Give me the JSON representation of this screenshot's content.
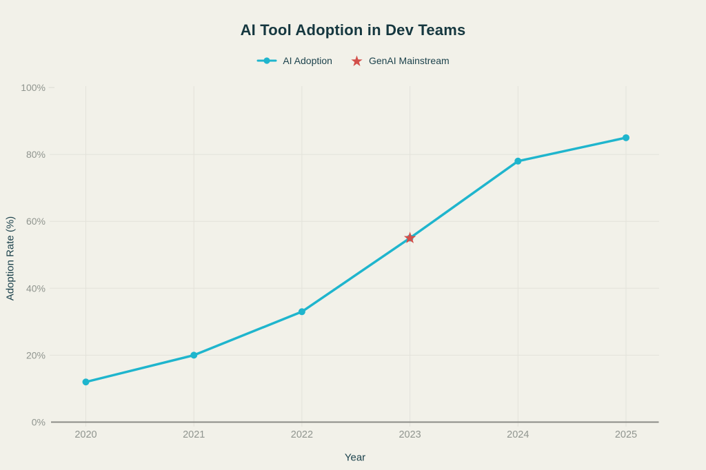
{
  "title": "AI Tool Adoption in Dev Teams",
  "legend": {
    "items": [
      {
        "label": "AI Adoption",
        "marker": "line-dot",
        "color": "#1fb5cd"
      },
      {
        "label": "GenAI Mainstream",
        "marker": "star",
        "color": "#d34f4a"
      }
    ]
  },
  "chart_data": {
    "type": "line",
    "title": "AI Tool Adoption in Dev Teams",
    "x": [
      2020,
      2021,
      2022,
      2023,
      2024,
      2025
    ],
    "series": [
      {
        "name": "AI Adoption",
        "type": "line",
        "marker": "circle",
        "color": "#1fb5cd",
        "values": [
          12,
          20,
          33,
          55,
          78,
          85
        ]
      },
      {
        "name": "GenAI Mainstream",
        "type": "scatter",
        "marker": "star",
        "color": "#d34f4a",
        "points": [
          {
            "x": 2023,
            "y": 55
          }
        ]
      }
    ],
    "xlabel": "Year",
    "ylabel": "Adoption Rate (%)",
    "ylim": [
      0,
      100
    ],
    "yticks": [
      0,
      20,
      40,
      60,
      80,
      100
    ],
    "ytick_suffix": "%",
    "grid": true,
    "legend_position": "top"
  },
  "colors": {
    "background": "#f2f1e9",
    "line": "#1fb5cd",
    "star": "#d34f4a",
    "heading": "#15373f",
    "axis_title": "#1c424c",
    "tick_label": "#90958f",
    "gridline": "#e3e2da",
    "axis_line": "#8b8b86"
  }
}
